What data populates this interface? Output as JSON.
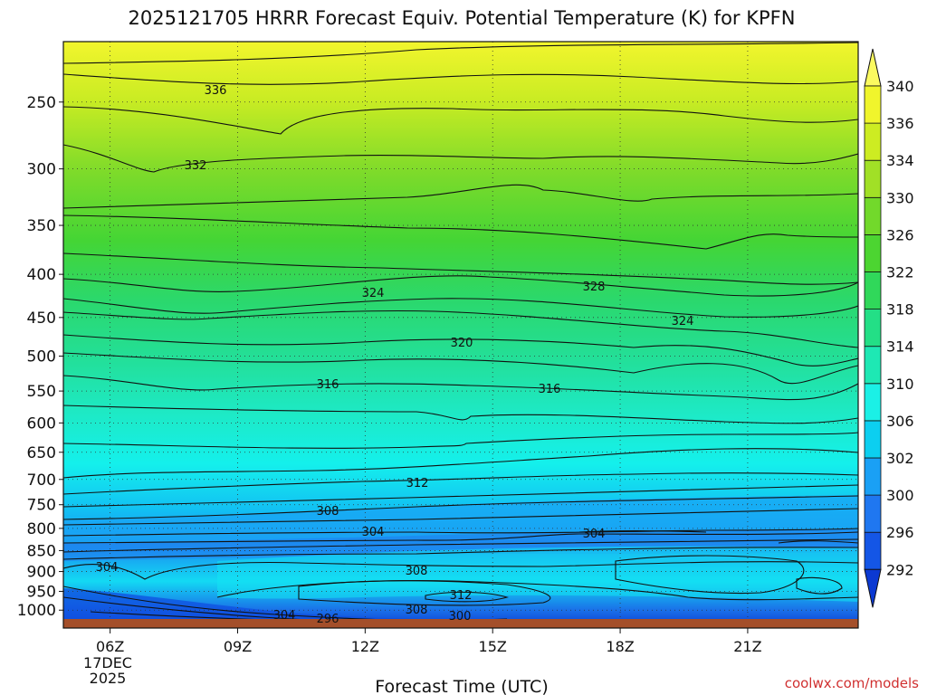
{
  "chart_data": {
    "type": "heatmap",
    "title": "2025121705 HRRR Forecast Equiv. Potential Temperature (K) for KPFN",
    "xlabel": "Forecast Time (UTC)",
    "ylabel": "",
    "credit": "coolwx.com/models",
    "x_ticks": [
      "06Z",
      "09Z",
      "12Z",
      "15Z",
      "18Z",
      "21Z"
    ],
    "x_date_lines": [
      "17DEC",
      "2025"
    ],
    "y_ticks": [
      250,
      300,
      350,
      400,
      450,
      500,
      550,
      600,
      650,
      700,
      750,
      800,
      850,
      900,
      950,
      1000
    ],
    "y_axis": "pressure (hPa, inverted, log scale)",
    "colorbar": {
      "levels": [
        292,
        296,
        300,
        302,
        306,
        310,
        314,
        318,
        322,
        326,
        330,
        334,
        336,
        340
      ],
      "colors": [
        "#0b39d2",
        "#1456e6",
        "#1f77f0",
        "#1aa0f5",
        "#0ccff0",
        "#1bf0e6",
        "#1ee8b4",
        "#23df86",
        "#30d85a",
        "#4cd531",
        "#72d92b",
        "#a1e026",
        "#cdec22",
        "#f0f52c",
        "#fbfa60"
      ]
    },
    "contour_labels": [
      {
        "text": "336"
      },
      {
        "text": "332"
      },
      {
        "text": "328"
      },
      {
        "text": "324"
      },
      {
        "text": "324"
      },
      {
        "text": "320"
      },
      {
        "text": "316"
      },
      {
        "text": "316"
      },
      {
        "text": "312"
      },
      {
        "text": "312"
      },
      {
        "text": "308"
      },
      {
        "text": "308"
      },
      {
        "text": "308"
      },
      {
        "text": "304"
      },
      {
        "text": "304"
      },
      {
        "text": "304"
      },
      {
        "text": "304"
      },
      {
        "text": "300"
      },
      {
        "text": "296"
      }
    ],
    "grid": true
  }
}
